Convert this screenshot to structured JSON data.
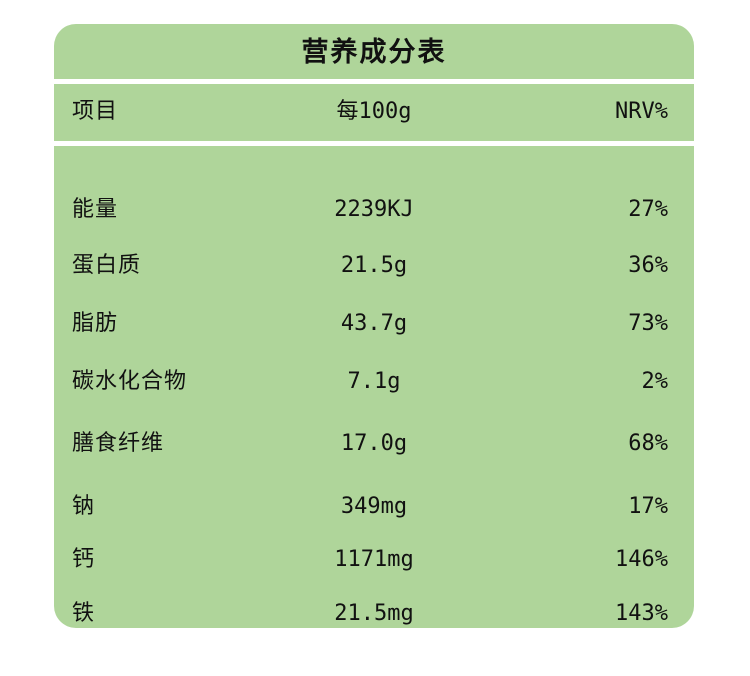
{
  "title": "营养成分表",
  "columns": {
    "name": "项目",
    "amount": "每100g",
    "nrv": "NRV%"
  },
  "rows": [
    {
      "name": "能量",
      "amount": "2239KJ",
      "nrv": "27%"
    },
    {
      "name": "蛋白质",
      "amount": "21.5g",
      "nrv": "36%"
    },
    {
      "name": "脂肪",
      "amount": "43.7g",
      "nrv": "73%"
    },
    {
      "name": "碳水化合物",
      "amount": "7.1g",
      "nrv": "2%"
    },
    {
      "name": "膳食纤维",
      "amount": "17.0g",
      "nrv": "68%"
    },
    {
      "name": "钠",
      "amount": "349mg",
      "nrv": "17%"
    },
    {
      "name": "钙",
      "amount": "1171mg",
      "nrv": "146%"
    },
    {
      "name": "铁",
      "amount": "21.5mg",
      "nrv": "143%"
    }
  ],
  "colors": {
    "panel": "#afd59a",
    "divider": "#ffffff",
    "text": "#111111"
  }
}
